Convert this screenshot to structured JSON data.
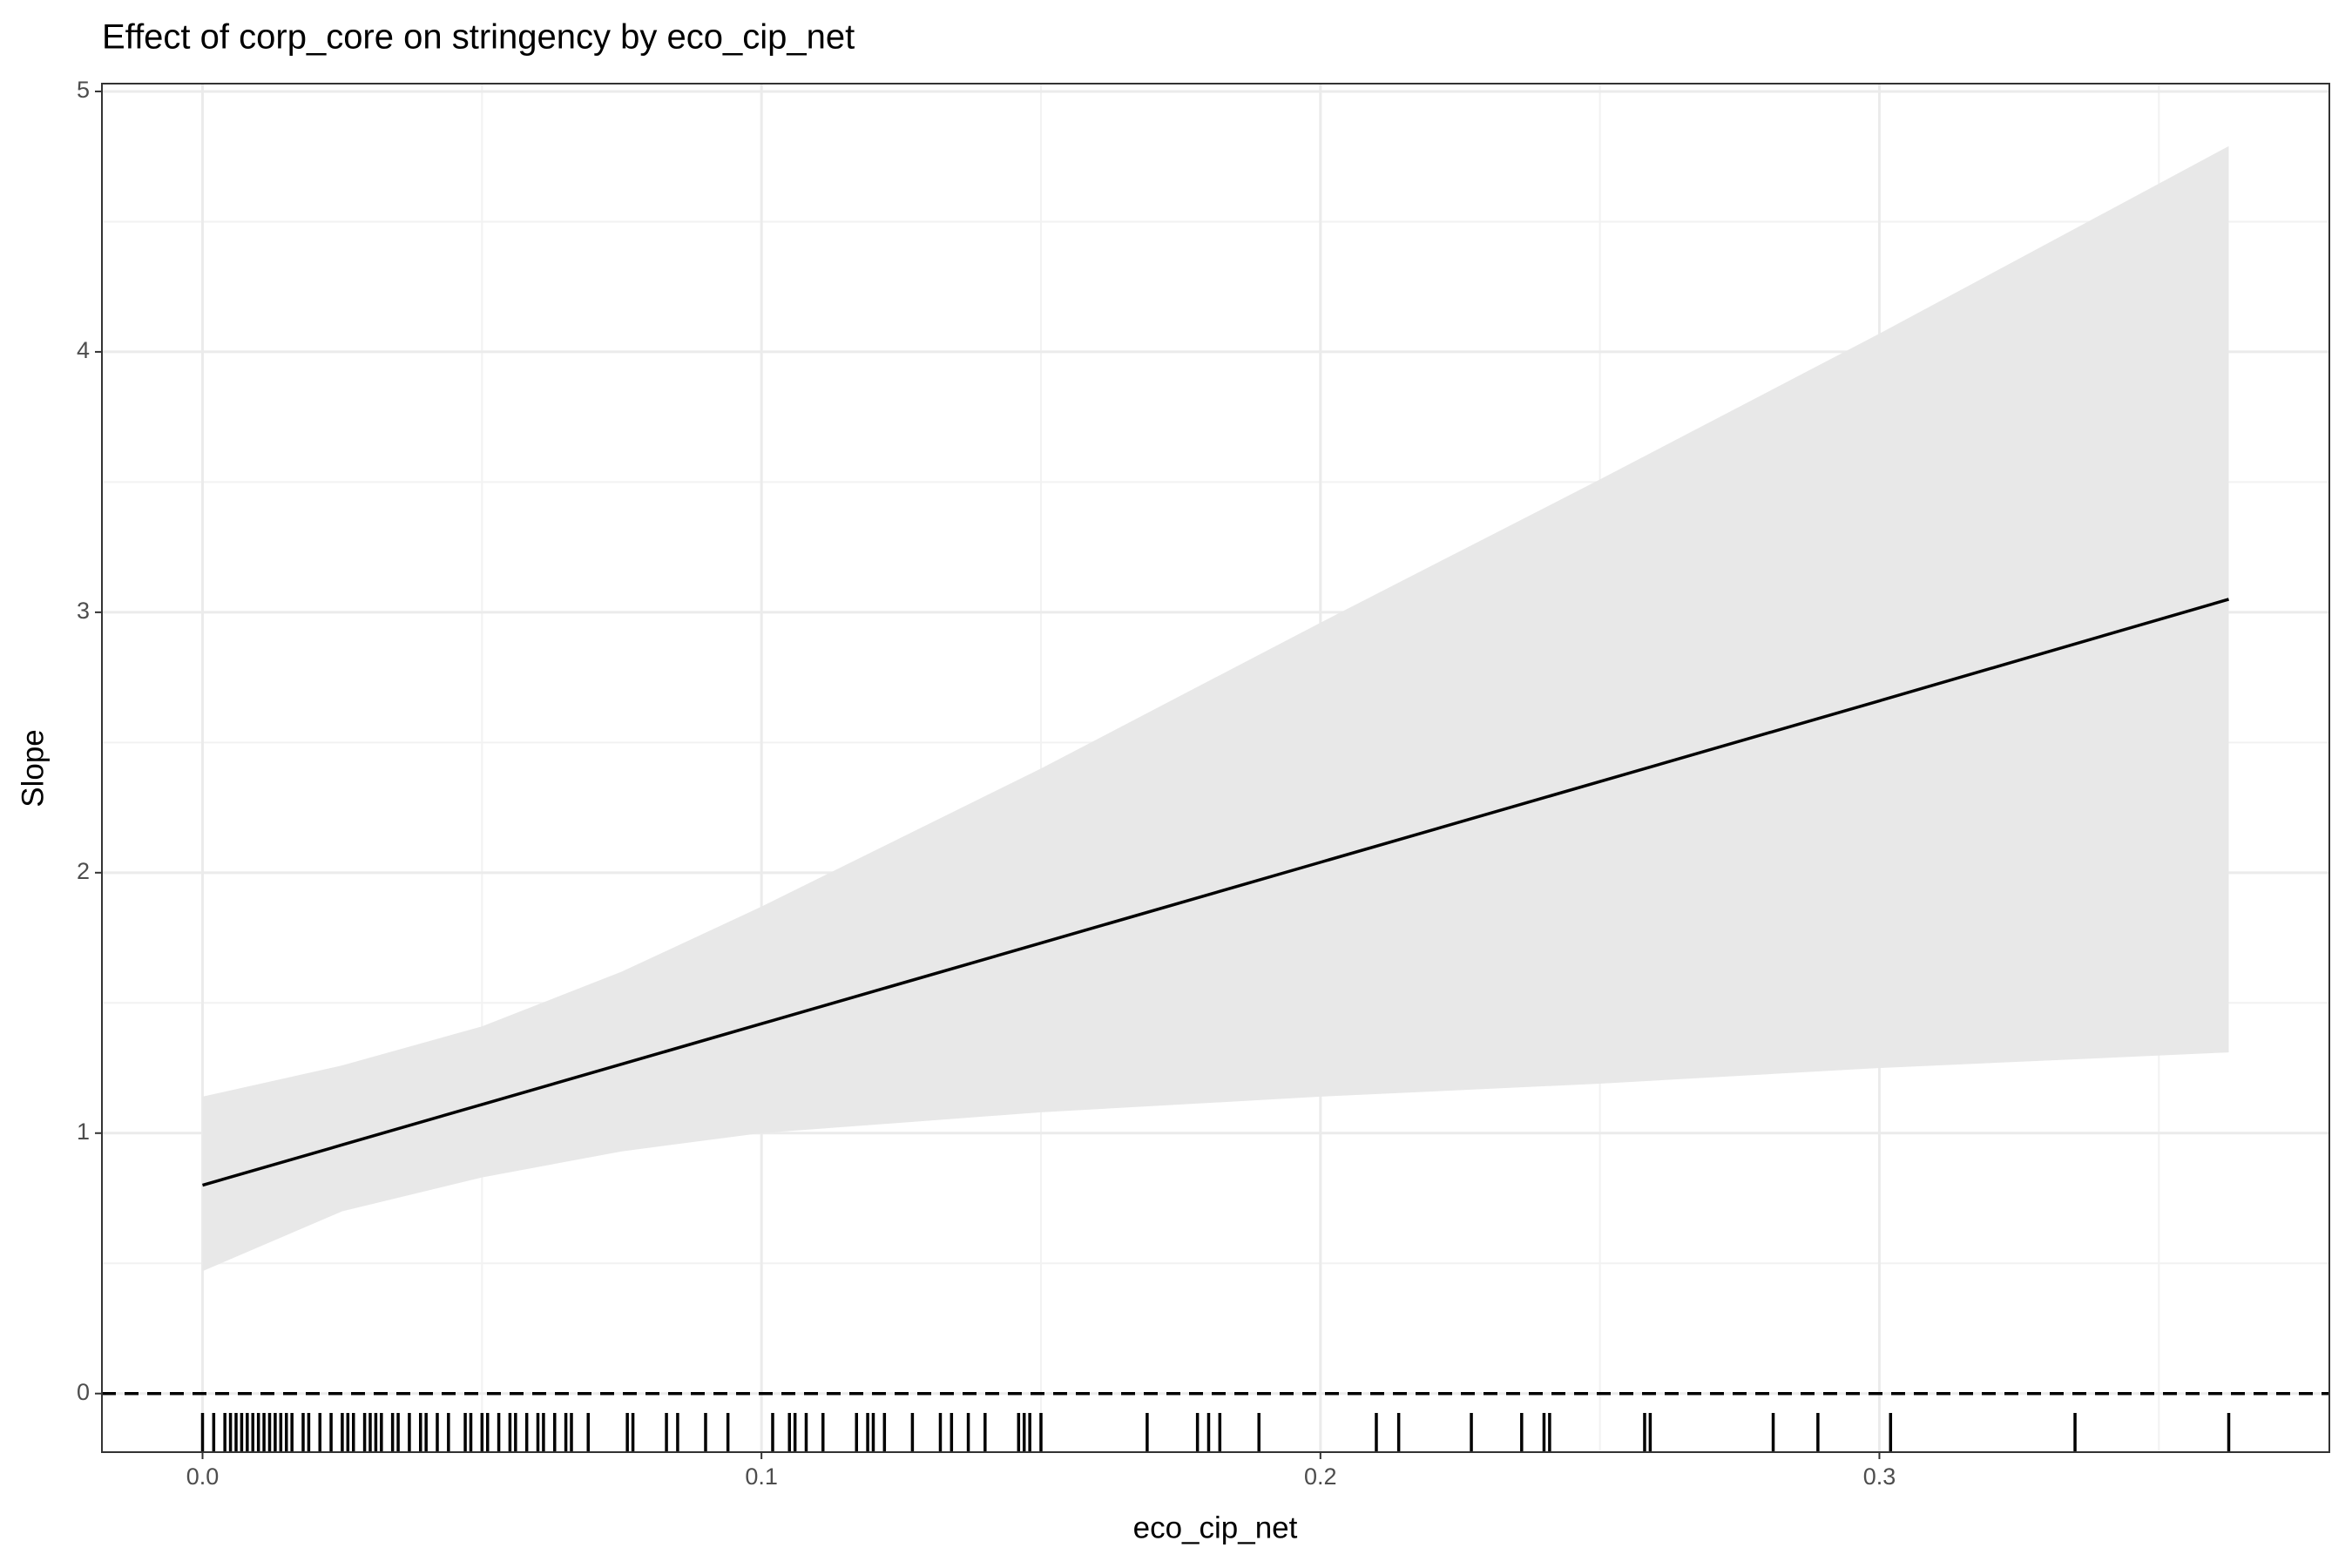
{
  "chart_data": {
    "type": "line",
    "title": "Effect of corp_core on stringency by eco_cip_net",
    "x_label": "eco_cip_net",
    "y_label": "Slope",
    "x": [
      0,
      0.025,
      0.05,
      0.075,
      0.1,
      0.15,
      0.2,
      0.25,
      0.3,
      0.3625
    ],
    "values": [
      0.8,
      0.955,
      1.11,
      1.265,
      1.42,
      1.73,
      2.04,
      2.35,
      2.66,
      3.05
    ],
    "lower": [
      0.47,
      0.7,
      0.83,
      0.93,
      1.0,
      1.08,
      1.14,
      1.19,
      1.25,
      1.31
    ],
    "upper": [
      1.14,
      1.26,
      1.41,
      1.62,
      1.87,
      2.4,
      2.96,
      3.51,
      4.07,
      4.79
    ],
    "color": "#000000",
    "band_color": "#e8e8e8",
    "hline": 0,
    "rug": [
      0,
      0.002,
      0.004,
      0.005,
      0.006,
      0.007,
      0.008,
      0.009,
      0.01,
      0.011,
      0.012,
      0.013,
      0.014,
      0.015,
      0.016,
      0.018,
      0.019,
      0.021,
      0.023,
      0.025,
      0.026,
      0.027,
      0.029,
      0.03,
      0.031,
      0.032,
      0.034,
      0.035,
      0.037,
      0.039,
      0.04,
      0.042,
      0.044,
      0.047,
      0.048,
      0.05,
      0.051,
      0.053,
      0.055,
      0.056,
      0.058,
      0.06,
      0.061,
      0.063,
      0.065,
      0.066,
      0.069,
      0.076,
      0.077,
      0.083,
      0.085,
      0.09,
      0.094,
      0.102,
      0.105,
      0.106,
      0.108,
      0.111,
      0.117,
      0.119,
      0.12,
      0.122,
      0.127,
      0.132,
      0.134,
      0.137,
      0.14,
      0.146,
      0.147,
      0.148,
      0.15,
      0.169,
      0.178,
      0.18,
      0.182,
      0.189,
      0.21,
      0.214,
      0.227,
      0.236,
      0.24,
      0.241,
      0.258,
      0.259,
      0.281,
      0.289,
      0.302,
      0.335,
      0.3625
    ],
    "xlim": [
      -0.018,
      0.3805
    ],
    "ylim": [
      -0.225,
      5.03
    ],
    "xticks": [
      {
        "value": 0,
        "label": "0.0"
      },
      0.1,
      0.2,
      0.3
    ],
    "yticks": [
      0,
      1,
      2,
      3,
      4,
      5
    ],
    "xminor": [
      0.05,
      0.15,
      0.25,
      0.35
    ],
    "yminor": [
      0.5,
      1.5,
      2.5,
      3.5,
      4.5
    ],
    "grid": true
  }
}
